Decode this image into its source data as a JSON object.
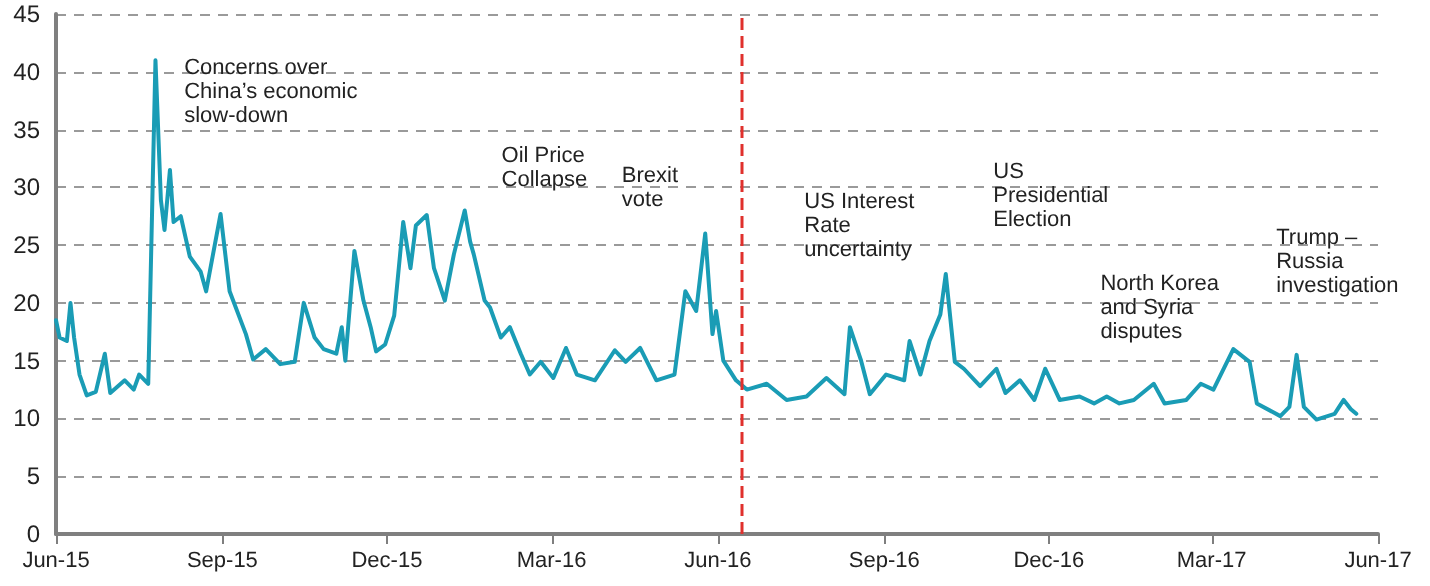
{
  "chart_data": {
    "type": "line",
    "x": [
      "2015-06-01",
      "2015-06-03",
      "2015-06-07",
      "2015-06-09",
      "2015-06-11",
      "2015-06-14",
      "2015-06-18",
      "2015-06-23",
      "2015-06-28",
      "2015-07-01",
      "2015-07-09",
      "2015-07-14",
      "2015-07-17",
      "2015-07-22",
      "2015-07-26",
      "2015-07-29",
      "2015-07-31",
      "2015-08-03",
      "2015-08-05",
      "2015-08-09",
      "2015-08-14",
      "2015-08-20",
      "2015-08-23",
      "2015-08-31",
      "2015-09-05",
      "2015-09-14",
      "2015-09-18",
      "2015-09-25",
      "2015-10-03",
      "2015-10-11",
      "2015-10-16",
      "2015-10-22",
      "2015-10-27",
      "2015-11-03",
      "2015-11-06",
      "2015-11-08",
      "2015-11-13",
      "2015-11-18",
      "2015-11-22",
      "2015-11-25",
      "2015-11-30",
      "2015-12-05",
      "2015-12-10",
      "2015-12-14",
      "2015-12-17",
      "2015-12-23",
      "2015-12-27",
      "2016-01-02",
      "2016-01-07",
      "2016-01-13",
      "2016-01-16",
      "2016-01-18",
      "2016-01-24",
      "2016-01-27",
      "2016-02-02",
      "2016-02-07",
      "2016-02-13",
      "2016-02-18",
      "2016-02-24",
      "2016-03-02",
      "2016-03-09",
      "2016-03-15",
      "2016-03-25",
      "2016-04-05",
      "2016-04-11",
      "2016-04-19",
      "2016-04-28",
      "2016-05-08",
      "2016-05-14",
      "2016-05-20",
      "2016-05-25",
      "2016-05-29",
      "2016-05-31",
      "2016-06-04",
      "2016-06-11",
      "2016-06-17",
      "2016-06-28",
      "2016-07-09",
      "2016-07-20",
      "2016-07-31",
      "2016-08-10",
      "2016-08-13",
      "2016-08-19",
      "2016-08-24",
      "2016-09-02",
      "2016-09-12",
      "2016-09-15",
      "2016-09-21",
      "2016-09-26",
      "2016-10-02",
      "2016-10-05",
      "2016-10-10",
      "2016-10-15",
      "2016-10-24",
      "2016-11-02",
      "2016-11-07",
      "2016-11-15",
      "2016-11-23",
      "2016-11-29",
      "2016-12-07",
      "2016-12-18",
      "2016-12-26",
      "2017-01-02",
      "2017-01-09",
      "2017-01-17",
      "2017-01-28",
      "2017-02-03",
      "2017-02-15",
      "2017-02-23",
      "2017-03-02",
      "2017-03-13",
      "2017-03-22",
      "2017-03-26",
      "2017-04-08",
      "2017-04-13",
      "2017-04-17",
      "2017-04-21",
      "2017-04-28",
      "2017-05-08",
      "2017-05-13",
      "2017-05-17",
      "2017-05-20"
    ],
    "series": [
      {
        "color": "#1a9cb5",
        "values": [
          18.5,
          17,
          16.7,
          20,
          17,
          13.8,
          12,
          12.3,
          15.6,
          12.2,
          13.3,
          12.5,
          13.8,
          13,
          41,
          28.9,
          26.3,
          31.5,
          27,
          27.5,
          24,
          22.7,
          21,
          27.7,
          21,
          17.3,
          15.1,
          16,
          14.7,
          14.9,
          20,
          17,
          16,
          15.6,
          17.9,
          15,
          24.5,
          20.2,
          17.9,
          15.8,
          16.4,
          18.9,
          27,
          23,
          26.7,
          27.6,
          23,
          20.2,
          24.2,
          28,
          25.3,
          24.2,
          20.2,
          19.6,
          17,
          17.9,
          15.6,
          13.8,
          14.9,
          13.5,
          16.1,
          13.8,
          13.3,
          15.9,
          14.9,
          16.1,
          13.3,
          13.8,
          21,
          19.3,
          26,
          17.3,
          19.3,
          15,
          13.3,
          12.5,
          13,
          11.6,
          11.9,
          13.5,
          12.1,
          17.9,
          15.1,
          12.1,
          13.8,
          13.3,
          16.7,
          13.8,
          16.7,
          19,
          22.5,
          14.9,
          14.3,
          12.8,
          14.3,
          12.2,
          13.3,
          11.6,
          14.3,
          11.6,
          11.9,
          11.3,
          11.9,
          11.3,
          11.6,
          13,
          11.3,
          11.6,
          13,
          12.5,
          16,
          14.9,
          11.3,
          10.2,
          11,
          15.5,
          11,
          9.9,
          10.4,
          11.6,
          10.8,
          10.4
        ]
      }
    ],
    "xlim": [
      "2015-06-01",
      "2017-06-01"
    ],
    "xticks": [
      {
        "value": "2015-06-01",
        "label": "Jun-15"
      },
      {
        "value": "2015-09-01",
        "label": "Sep-15"
      },
      {
        "value": "2015-12-01",
        "label": "Dec-15"
      },
      {
        "value": "2016-03-01",
        "label": "Mar-16"
      },
      {
        "value": "2016-06-01",
        "label": "Jun-16"
      },
      {
        "value": "2016-09-01",
        "label": "Sep-16"
      },
      {
        "value": "2016-12-01",
        "label": "Dec-16"
      },
      {
        "value": "2017-03-01",
        "label": "Mar-17"
      },
      {
        "value": "2017-06-01",
        "label": "Jun-17"
      }
    ],
    "ylim": [
      0,
      45
    ],
    "yticks": [
      0,
      5,
      10,
      15,
      20,
      25,
      30,
      35,
      40,
      45
    ],
    "grid": "y",
    "marker": "none",
    "line_style": "solid",
    "ref_lines": [
      {
        "axis": "x",
        "value": "2016-06-14",
        "color": "#e0302c",
        "line_style": "dashed"
      }
    ],
    "annotations": [
      "Concerns over\nChina’s economic\nslow-down",
      "Oil Price\nCollapse",
      "Brexit\nvote",
      "US Interest\nRate\nuncertainty",
      "US\nPresidential\nElection",
      "North Korea\nand Syria\ndisputes",
      "Trump –\nRussia\ninvestigation"
    ]
  }
}
